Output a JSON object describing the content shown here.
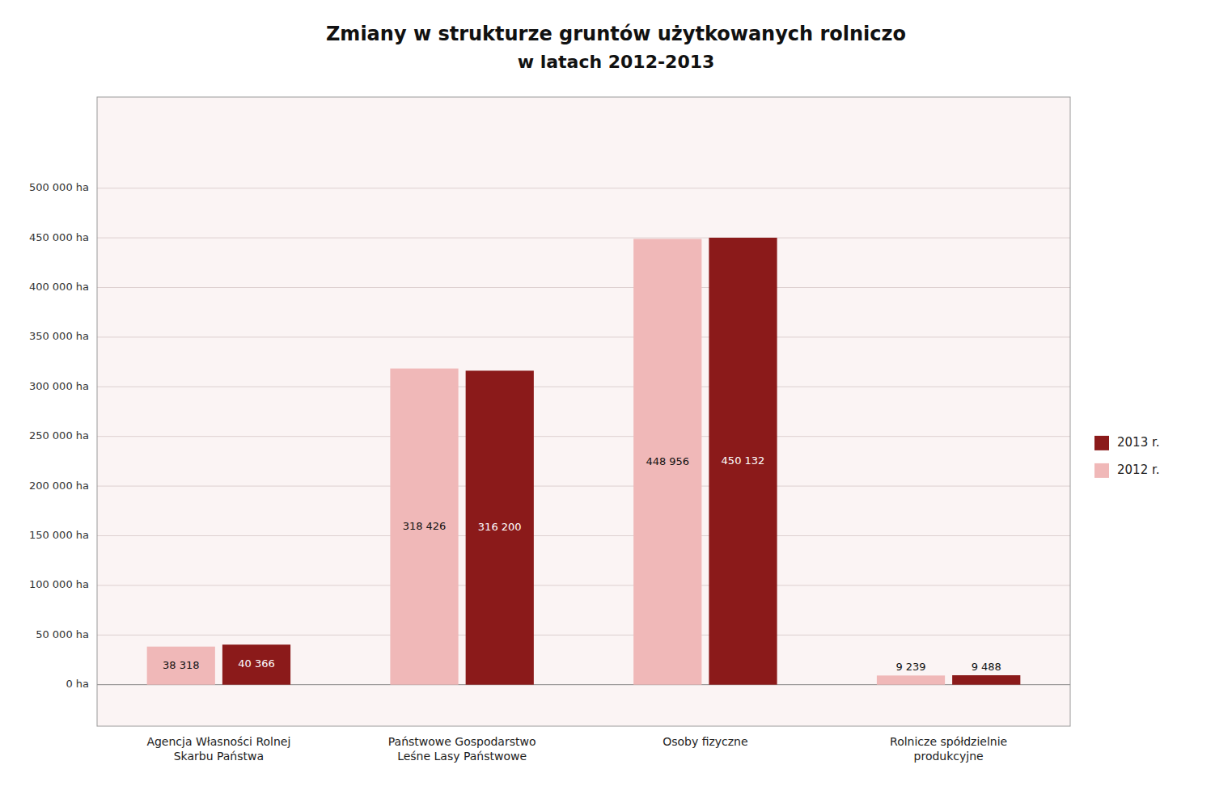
{
  "chart_data": {
    "type": "bar",
    "title": "Zmiany w strukturze gruntów użytkowanych rolniczo",
    "subtitle": "w latach 2012-2013",
    "categories": [
      "Agencja Własności Rolnej\nSkarbu Państwa",
      "Państwowe Gospodarstwo\nLeśne Lasy Państwowe",
      "Osoby fizyczne",
      "Rolnicze spółdzielnie\nprodukcyjne"
    ],
    "series": [
      {
        "name": "2012 r.",
        "color": "#f0b8b8",
        "values": [
          38318,
          318426,
          448956,
          9239
        ],
        "value_labels": [
          "38 318",
          "318 426",
          "448 956",
          "9 239"
        ]
      },
      {
        "name": "2013 r.",
        "color": "#8b1a1a",
        "values": [
          40366,
          316200,
          450132,
          9488
        ],
        "value_labels": [
          "40 366",
          "316 200",
          "450 132",
          "9 488"
        ]
      }
    ],
    "ylim": [
      -41800,
      591800
    ],
    "yticks": [
      {
        "value": 0,
        "label": "0 ha"
      },
      {
        "value": 50000,
        "label": "50 000 ha"
      },
      {
        "value": 100000,
        "label": "100 000 ha"
      },
      {
        "value": 150000,
        "label": "150 000 ha"
      },
      {
        "value": 200000,
        "label": "200 000 ha"
      },
      {
        "value": 250000,
        "label": "250 000 ha"
      },
      {
        "value": 300000,
        "label": "300 000 ha"
      },
      {
        "value": 350000,
        "label": "350 000 ha"
      },
      {
        "value": 400000,
        "label": "400 000 ha"
      },
      {
        "value": 450000,
        "label": "450 000 ha"
      },
      {
        "value": 500000,
        "label": "500 000 ha"
      }
    ],
    "grid": true,
    "legend": "right",
    "data_labels": true
  }
}
